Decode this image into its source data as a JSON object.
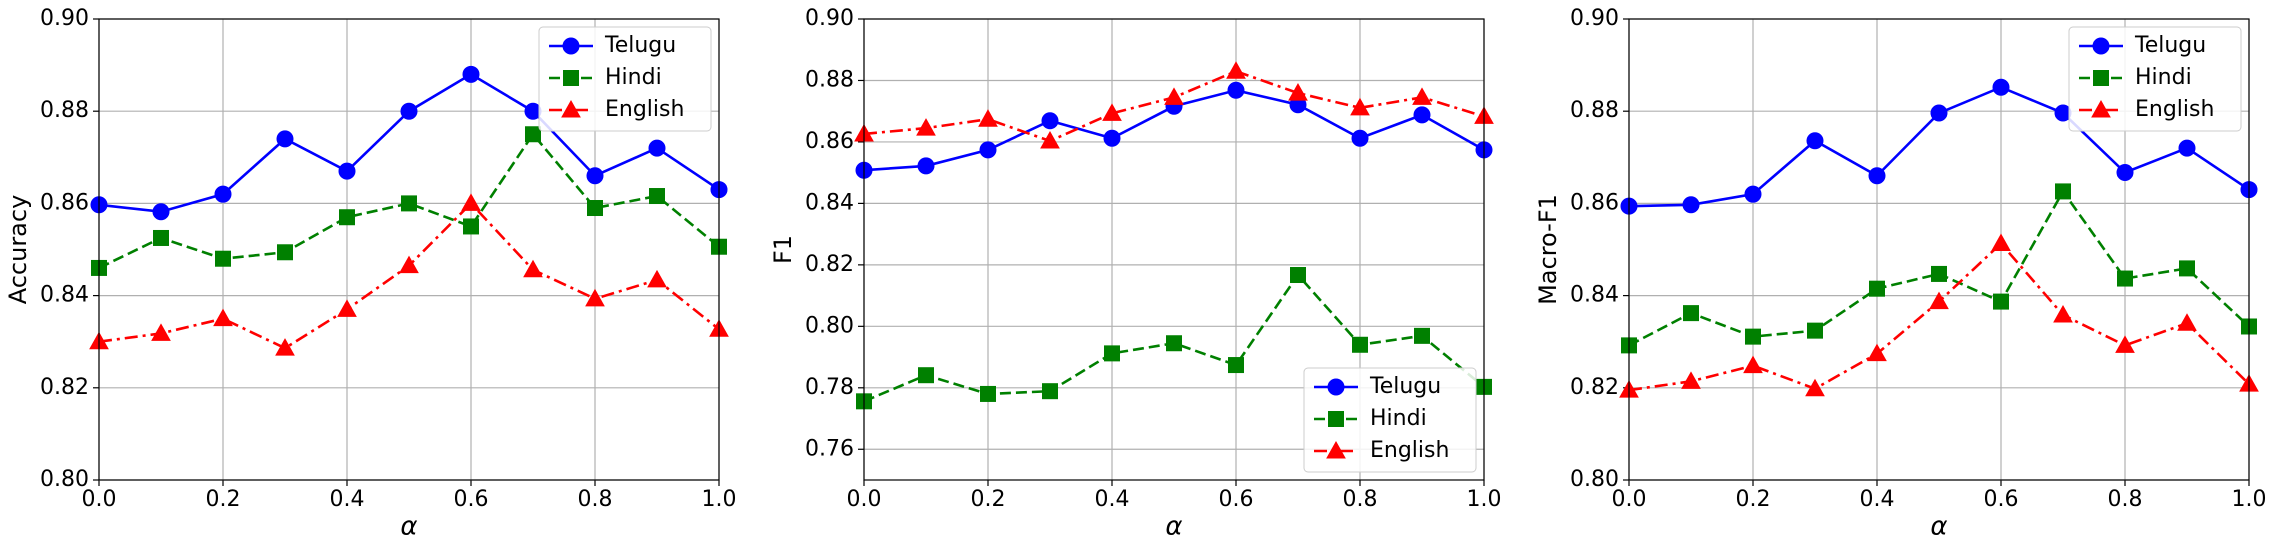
{
  "chart_data": [
    {
      "type": "line",
      "ylabel": "Accuracy",
      "xlabel": "α",
      "x": [
        0,
        0.1,
        0.2,
        0.3,
        0.4,
        0.5,
        0.6,
        0.7,
        0.8,
        0.9,
        1
      ],
      "xlim": [
        0,
        1
      ],
      "ylim": [
        0.8,
        0.9
      ],
      "xticks": [
        {
          "value": 0,
          "label": "0.0"
        },
        0.2,
        0.4,
        0.6,
        0.8,
        {
          "value": 1,
          "label": "1.0"
        }
      ],
      "yticks": [
        {
          "value": 0.8,
          "label": "0.80"
        },
        0.82,
        0.84,
        0.86,
        0.88,
        {
          "value": 0.9,
          "label": "0.90"
        }
      ],
      "grid": true,
      "legend": "upper right",
      "series": [
        {
          "name": "Telugu",
          "color": "#0000ff",
          "marker": "circle",
          "linestyle": "solid",
          "values": [
            0.8597,
            0.8582,
            0.862,
            0.874,
            0.867,
            0.88,
            0.888,
            0.88,
            0.866,
            0.872,
            0.863
          ]
        },
        {
          "name": "Hindi",
          "color": "#008000",
          "marker": "square",
          "linestyle": "dashed",
          "values": [
            0.846,
            0.8525,
            0.848,
            0.8494,
            0.857,
            0.86,
            0.855,
            0.875,
            0.859,
            0.8616,
            0.8506
          ]
        },
        {
          "name": "English",
          "color": "#ff0000",
          "marker": "triangle",
          "linestyle": "dashdot",
          "values": [
            0.83,
            0.8318,
            0.835,
            0.8286,
            0.837,
            0.8465,
            0.86,
            0.8456,
            0.8393,
            0.8434,
            0.8327
          ]
        }
      ]
    },
    {
      "type": "line",
      "ylabel": "F1",
      "xlabel": "α",
      "x": [
        0,
        0.1,
        0.2,
        0.3,
        0.4,
        0.5,
        0.6,
        0.7,
        0.8,
        0.9,
        1
      ],
      "xlim": [
        0,
        1
      ],
      "ylim": [
        0.75,
        0.9
      ],
      "xticks": [
        {
          "value": 0,
          "label": "0.0"
        },
        0.2,
        0.4,
        0.6,
        0.8,
        {
          "value": 1,
          "label": "1.0"
        }
      ],
      "yticks": [
        0.76,
        0.78,
        {
          "value": 0.8,
          "label": "0.80"
        },
        0.82,
        0.84,
        0.86,
        0.88,
        {
          "value": 0.9,
          "label": "0.90"
        }
      ],
      "grid": true,
      "legend": "lower right",
      "series": [
        {
          "name": "Telugu",
          "color": "#0000ff",
          "marker": "circle",
          "linestyle": "solid",
          "values": [
            0.8508,
            0.8522,
            0.8574,
            0.8669,
            0.8612,
            0.8716,
            0.8768,
            0.8721,
            0.8612,
            0.8688,
            0.8574
          ]
        },
        {
          "name": "Hindi",
          "color": "#008000",
          "marker": "square",
          "linestyle": "dashed",
          "values": [
            0.7756,
            0.7841,
            0.778,
            0.7789,
            0.7912,
            0.7945,
            0.7874,
            0.8167,
            0.794,
            0.7969,
            0.7803
          ]
        },
        {
          "name": "English",
          "color": "#ff0000",
          "marker": "triangle",
          "linestyle": "dashdot",
          "values": [
            0.8626,
            0.8645,
            0.8674,
            0.8603,
            0.8693,
            0.8745,
            0.883,
            0.8759,
            0.8711,
            0.8745,
            0.8683
          ]
        }
      ]
    },
    {
      "type": "line",
      "ylabel": "Macro-F1",
      "xlabel": "α",
      "x": [
        0,
        0.1,
        0.2,
        0.3,
        0.4,
        0.5,
        0.6,
        0.7,
        0.8,
        0.9,
        1
      ],
      "xlim": [
        0,
        1
      ],
      "ylim": [
        0.8,
        0.9
      ],
      "xticks": [
        {
          "value": 0,
          "label": "0.0"
        },
        0.2,
        0.4,
        0.6,
        0.8,
        {
          "value": 1,
          "label": "1.0"
        }
      ],
      "yticks": [
        {
          "value": 0.8,
          "label": "0.80"
        },
        0.82,
        0.84,
        0.86,
        0.88,
        {
          "value": 0.9,
          "label": "0.90"
        }
      ],
      "grid": true,
      "legend": "upper right",
      "series": [
        {
          "name": "Telugu",
          "color": "#0000ff",
          "marker": "circle",
          "linestyle": "solid",
          "values": [
            0.8594,
            0.8597,
            0.862,
            0.8736,
            0.866,
            0.8796,
            0.8852,
            0.8796,
            0.8667,
            0.872,
            0.863
          ]
        },
        {
          "name": "Hindi",
          "color": "#008000",
          "marker": "square",
          "linestyle": "dashed",
          "values": [
            0.8292,
            0.8362,
            0.8311,
            0.8324,
            0.8415,
            0.8447,
            0.8387,
            0.8626,
            0.8437,
            0.8459,
            0.8333
          ]
        },
        {
          "name": "English",
          "color": "#ff0000",
          "marker": "triangle",
          "linestyle": "dashdot",
          "values": [
            0.8195,
            0.8214,
            0.8248,
            0.8198,
            0.8274,
            0.8387,
            0.8513,
            0.8358,
            0.8292,
            0.834,
            0.8208
          ]
        }
      ]
    }
  ]
}
